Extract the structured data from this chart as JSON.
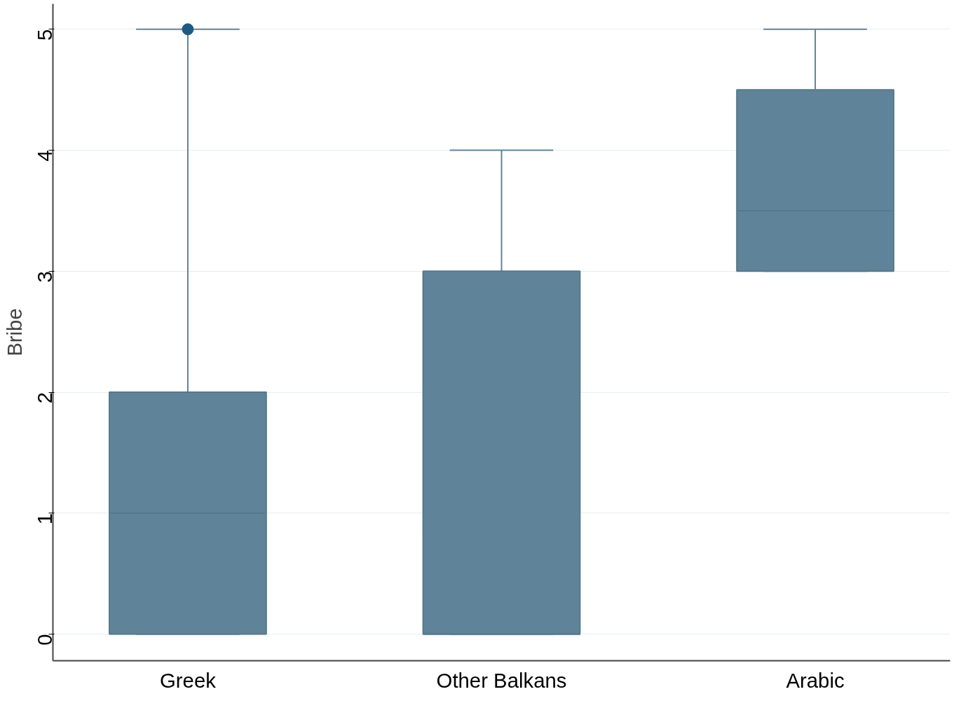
{
  "chart_data": {
    "type": "box",
    "ylabel": "Bribe",
    "categories": [
      "Greek",
      "Other Balkans",
      "Arabic"
    ],
    "boxes": [
      {
        "low": 0,
        "q1": 0,
        "median": 1,
        "q3": 2,
        "high": 5,
        "outliers": [
          5
        ]
      },
      {
        "low": 0,
        "q1": 0,
        "median": 0,
        "q3": 3,
        "high": 4
      },
      {
        "low": 3,
        "q1": 3,
        "median": 3.5,
        "q3": 4.5,
        "high": 5
      }
    ],
    "color": "#5f8499",
    "ylim": [
      -0.22,
      5.21
    ],
    "yticks": [
      0,
      1,
      2,
      3,
      4,
      5
    ],
    "grid": "y"
  }
}
